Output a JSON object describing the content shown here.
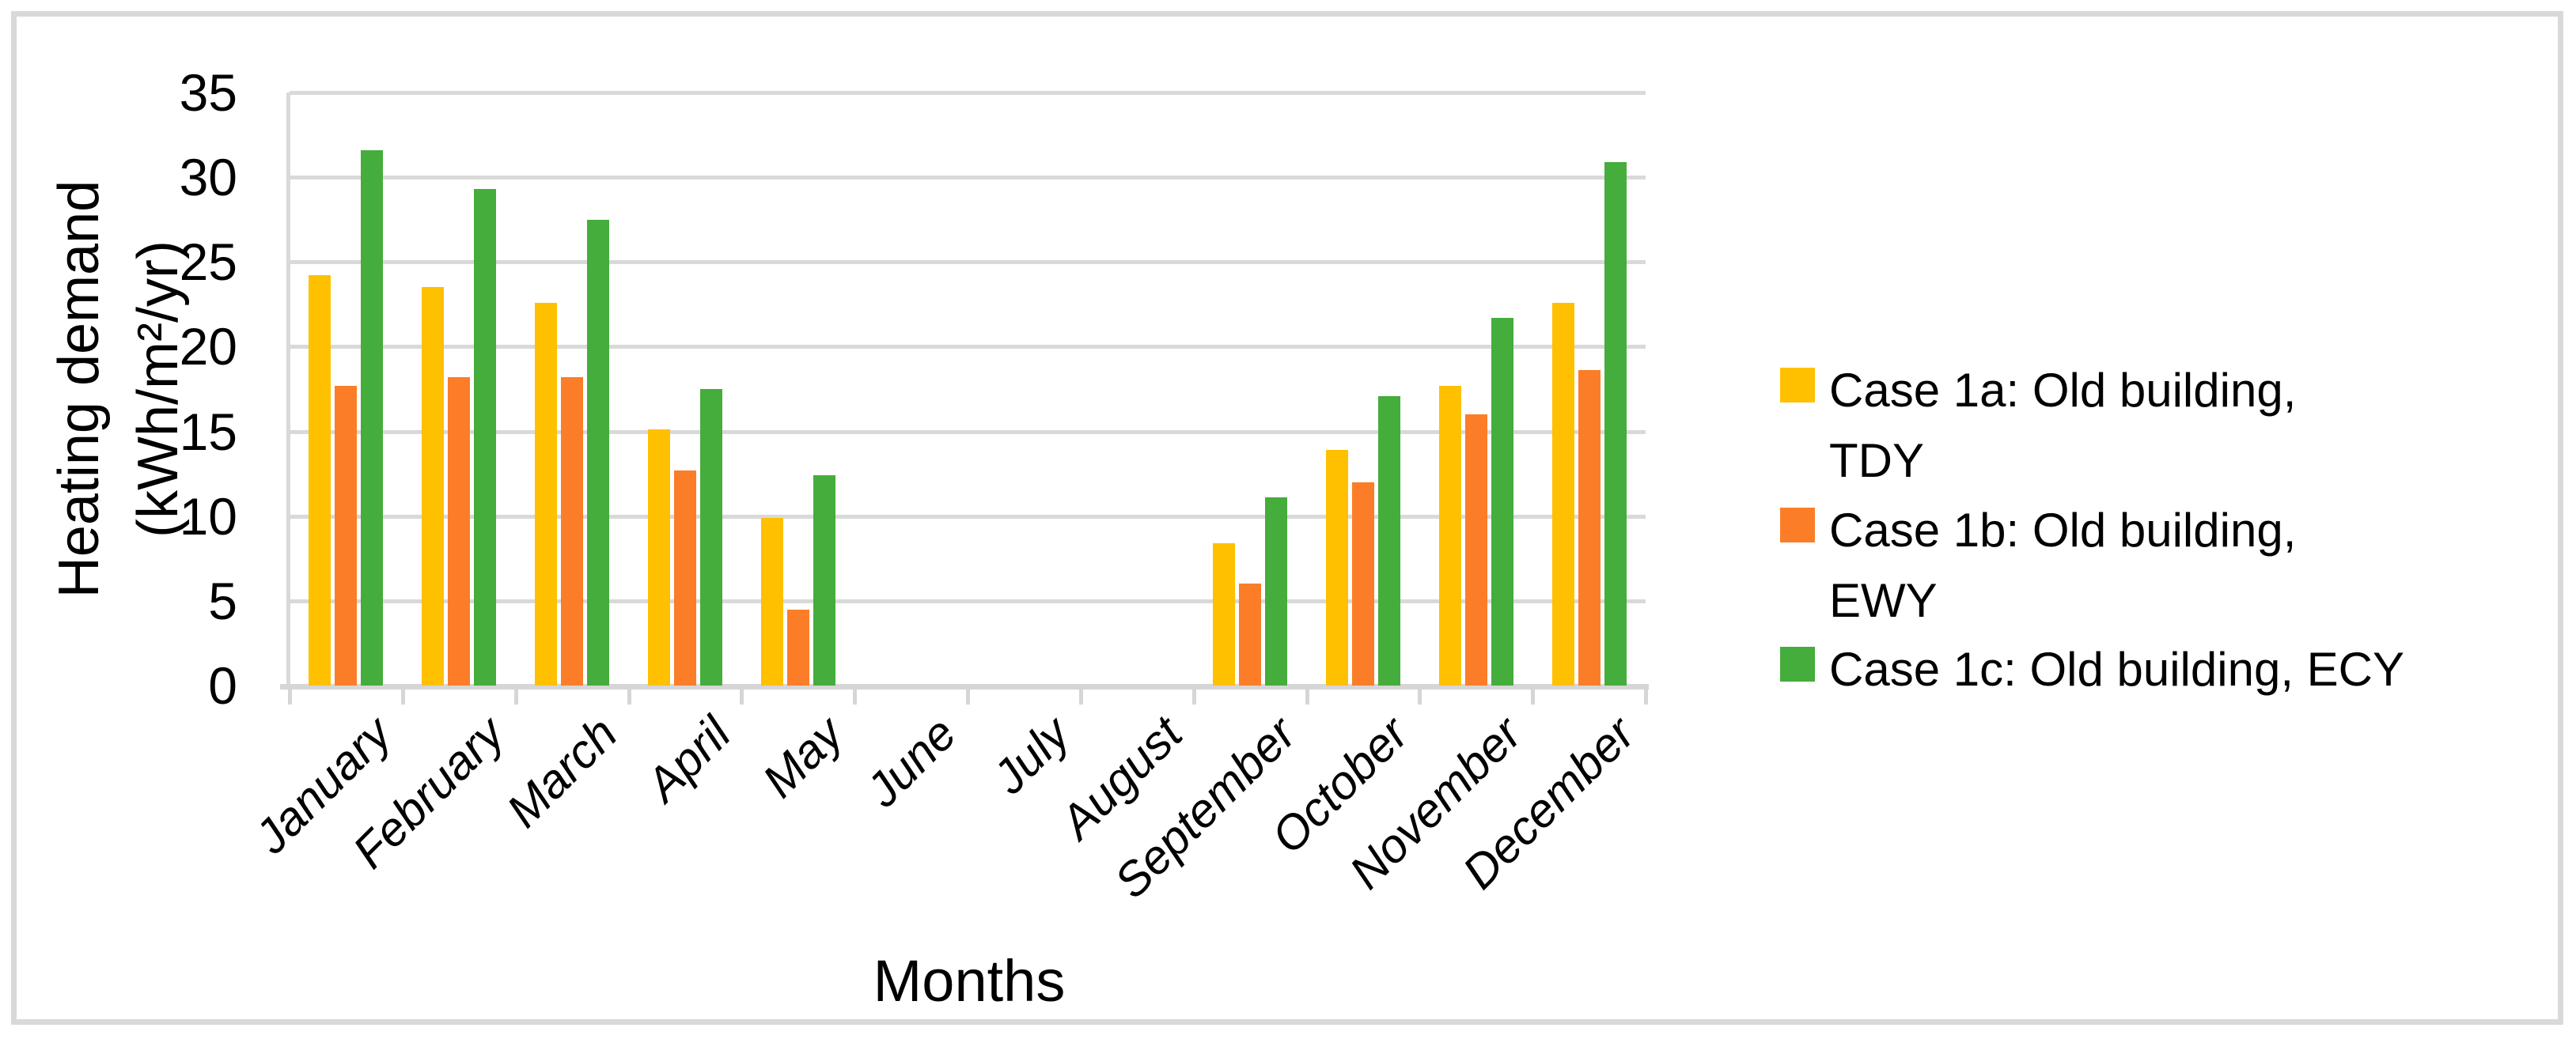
{
  "figure": {
    "background": "#FFFFFF",
    "frame_border_color": "#D9D9D9",
    "gridline_color": "#D9D9D9",
    "axis_line_color": "#D6D6D6",
    "text_color": "#000000"
  },
  "chart_data": {
    "type": "bar",
    "title": "",
    "xlabel": "Months",
    "ylabel_lines": [
      "Heating demand",
      "(kWh/m²/yr)"
    ],
    "ylim": [
      0,
      35
    ],
    "ytick_step": 5,
    "yticks": [
      0,
      5,
      10,
      15,
      20,
      25,
      30,
      35
    ],
    "grid": true,
    "legend_position": "right",
    "categories": [
      "January",
      "February",
      "March",
      "April",
      "May",
      "June",
      "July",
      "August",
      "September",
      "October",
      "November",
      "December"
    ],
    "series": [
      {
        "name": "Case 1a: Old building, TDY",
        "color": "#FFC000",
        "values": [
          24.2,
          23.5,
          22.6,
          15.1,
          9.9,
          0,
          0,
          0,
          8.4,
          13.9,
          17.7,
          22.6
        ]
      },
      {
        "name": "Case 1b: Old building, EWY",
        "color": "#FC7D28",
        "values": [
          17.7,
          18.2,
          18.2,
          12.7,
          4.5,
          0,
          0,
          0,
          6.0,
          12.0,
          16.0,
          18.6
        ]
      },
      {
        "name": "Case 1c: Old building, ECY",
        "color": "#45AD3B",
        "values": [
          31.6,
          29.3,
          27.5,
          17.5,
          12.4,
          0,
          0,
          0,
          11.1,
          17.1,
          21.7,
          30.9
        ]
      }
    ],
    "legend_labels": [
      [
        "Case 1a: Old building,",
        "TDY"
      ],
      [
        "Case 1b: Old building,",
        "EWY"
      ],
      [
        "Case 1c: Old building, ECY"
      ]
    ]
  }
}
